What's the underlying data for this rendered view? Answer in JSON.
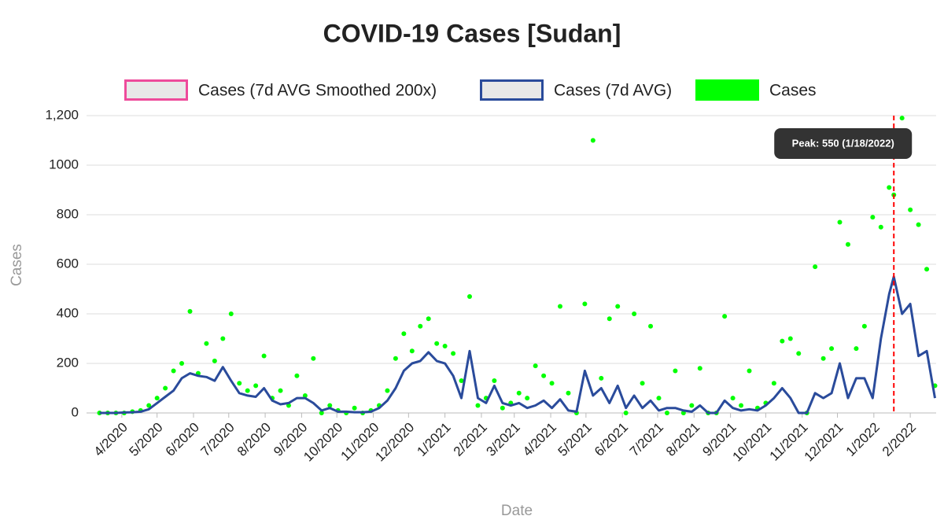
{
  "chart_data": {
    "type": "line",
    "title": "COVID-19 Cases [Sudan]",
    "x_label": "Date",
    "y_label": "Cases",
    "legend": "top",
    "grid": true,
    "x": [
      "3/13/2020",
      "3/20/2020",
      "3/27/2020",
      "4/3/2020",
      "4/10/2020",
      "4/17/2020",
      "4/24/2020",
      "5/1/2020",
      "5/8/2020",
      "5/15/2020",
      "5/22/2020",
      "5/29/2020",
      "6/5/2020",
      "6/12/2020",
      "6/19/2020",
      "6/26/2020",
      "7/3/2020",
      "7/10/2020",
      "7/17/2020",
      "7/24/2020",
      "7/31/2020",
      "8/7/2020",
      "8/14/2020",
      "8/21/2020",
      "8/28/2020",
      "9/4/2020",
      "9/11/2020",
      "9/18/2020",
      "9/25/2020",
      "10/2/2020",
      "10/9/2020",
      "10/16/2020",
      "10/23/2020",
      "10/30/2020",
      "11/6/2020",
      "11/13/2020",
      "11/20/2020",
      "11/27/2020",
      "12/4/2020",
      "12/11/2020",
      "12/18/2020",
      "12/25/2020",
      "1/1/2021",
      "1/8/2021",
      "1/15/2021",
      "1/22/2021",
      "1/29/2021",
      "2/5/2021",
      "2/12/2021",
      "2/19/2021",
      "2/26/2021",
      "3/5/2021",
      "3/12/2021",
      "3/19/2021",
      "3/26/2021",
      "4/2/2021",
      "4/9/2021",
      "4/16/2021",
      "4/23/2021",
      "4/30/2021",
      "5/7/2021",
      "5/14/2021",
      "5/21/2021",
      "5/28/2021",
      "6/4/2021",
      "6/11/2021",
      "6/18/2021",
      "6/25/2021",
      "7/2/2021",
      "7/9/2021",
      "7/16/2021",
      "7/23/2021",
      "7/30/2021",
      "8/6/2021",
      "8/13/2021",
      "8/20/2021",
      "8/27/2021",
      "9/3/2021",
      "9/10/2021",
      "9/17/2021",
      "9/24/2021",
      "10/1/2021",
      "10/8/2021",
      "10/15/2021",
      "10/22/2021",
      "10/29/2021",
      "11/5/2021",
      "11/12/2021",
      "11/19/2021",
      "11/26/2021",
      "12/3/2021",
      "12/10/2021",
      "12/17/2021",
      "12/24/2021",
      "12/31/2021",
      "1/7/2022",
      "1/14/2022",
      "1/18/2022",
      "1/25/2022",
      "2/1/2022",
      "2/8/2022",
      "2/15/2022",
      "2/22/2022"
    ],
    "series": [
      {
        "name": "Cases (7d AVG Smoothed 200x)",
        "type": "line",
        "color": "#ee4b9b"
      },
      {
        "name": "Cases (7d AVG)",
        "type": "line",
        "color": "#2a4b9b",
        "values": [
          0,
          0,
          0,
          2,
          3,
          5,
          15,
          40,
          65,
          90,
          140,
          160,
          150,
          145,
          130,
          185,
          130,
          80,
          70,
          65,
          100,
          50,
          35,
          40,
          60,
          60,
          40,
          10,
          20,
          5,
          5,
          3,
          3,
          5,
          20,
          50,
          100,
          170,
          200,
          210,
          245,
          210,
          200,
          150,
          60,
          250,
          60,
          40,
          110,
          40,
          30,
          40,
          20,
          30,
          50,
          20,
          55,
          10,
          5,
          170,
          70,
          100,
          40,
          110,
          20,
          70,
          20,
          50,
          10,
          20,
          20,
          10,
          5,
          30,
          0,
          0,
          50,
          20,
          10,
          15,
          10,
          30,
          60,
          100,
          60,
          0,
          0,
          80,
          60,
          80,
          200,
          60,
          140,
          140,
          60,
          300,
          480,
          550,
          400,
          440,
          230,
          250,
          60
        ]
      },
      {
        "name": "Cases",
        "type": "scatter",
        "color": "#00ff00",
        "values": [
          0,
          0,
          0,
          0,
          5,
          10,
          30,
          60,
          100,
          170,
          200,
          410,
          160,
          280,
          210,
          300,
          400,
          120,
          90,
          110,
          230,
          60,
          90,
          30,
          150,
          70,
          220,
          0,
          30,
          10,
          0,
          20,
          0,
          10,
          30,
          90,
          220,
          320,
          250,
          350,
          380,
          280,
          270,
          240,
          130,
          470,
          30,
          60,
          130,
          20,
          40,
          80,
          60,
          190,
          150,
          120,
          430,
          80,
          0,
          440,
          1100,
          140,
          380,
          430,
          0,
          400,
          120,
          350,
          60,
          0,
          170,
          0,
          30,
          180,
          0,
          0,
          390,
          60,
          30,
          170,
          20,
          40,
          120,
          290,
          300,
          240,
          0,
          590,
          220,
          260,
          770,
          680,
          260,
          350,
          790,
          750,
          910,
          880,
          1190,
          820,
          760,
          580,
          110
        ]
      }
    ],
    "annotation": {
      "label": "Peak: 550 (1/18/2022)",
      "x": "1/18/2022",
      "color": "#ff0000"
    },
    "xlim": [
      "3/10/2020",
      "2/23/2022"
    ],
    "xticks": [
      "4/2020",
      "5/2020",
      "6/2020",
      "7/2020",
      "8/2020",
      "9/2020",
      "10/2020",
      "11/2020",
      "12/2020",
      "1/2021",
      "2/2021",
      "3/2021",
      "4/2021",
      "5/2021",
      "6/2021",
      "7/2021",
      "8/2021",
      "9/2021",
      "10/2021",
      "11/2021",
      "12/2021",
      "1/2022",
      "2/2022"
    ],
    "ylim": [
      0,
      1200
    ],
    "yticks": [
      0,
      200,
      400,
      600,
      800,
      1000,
      {
        "value": 1200,
        "label": "1,200"
      }
    ]
  }
}
